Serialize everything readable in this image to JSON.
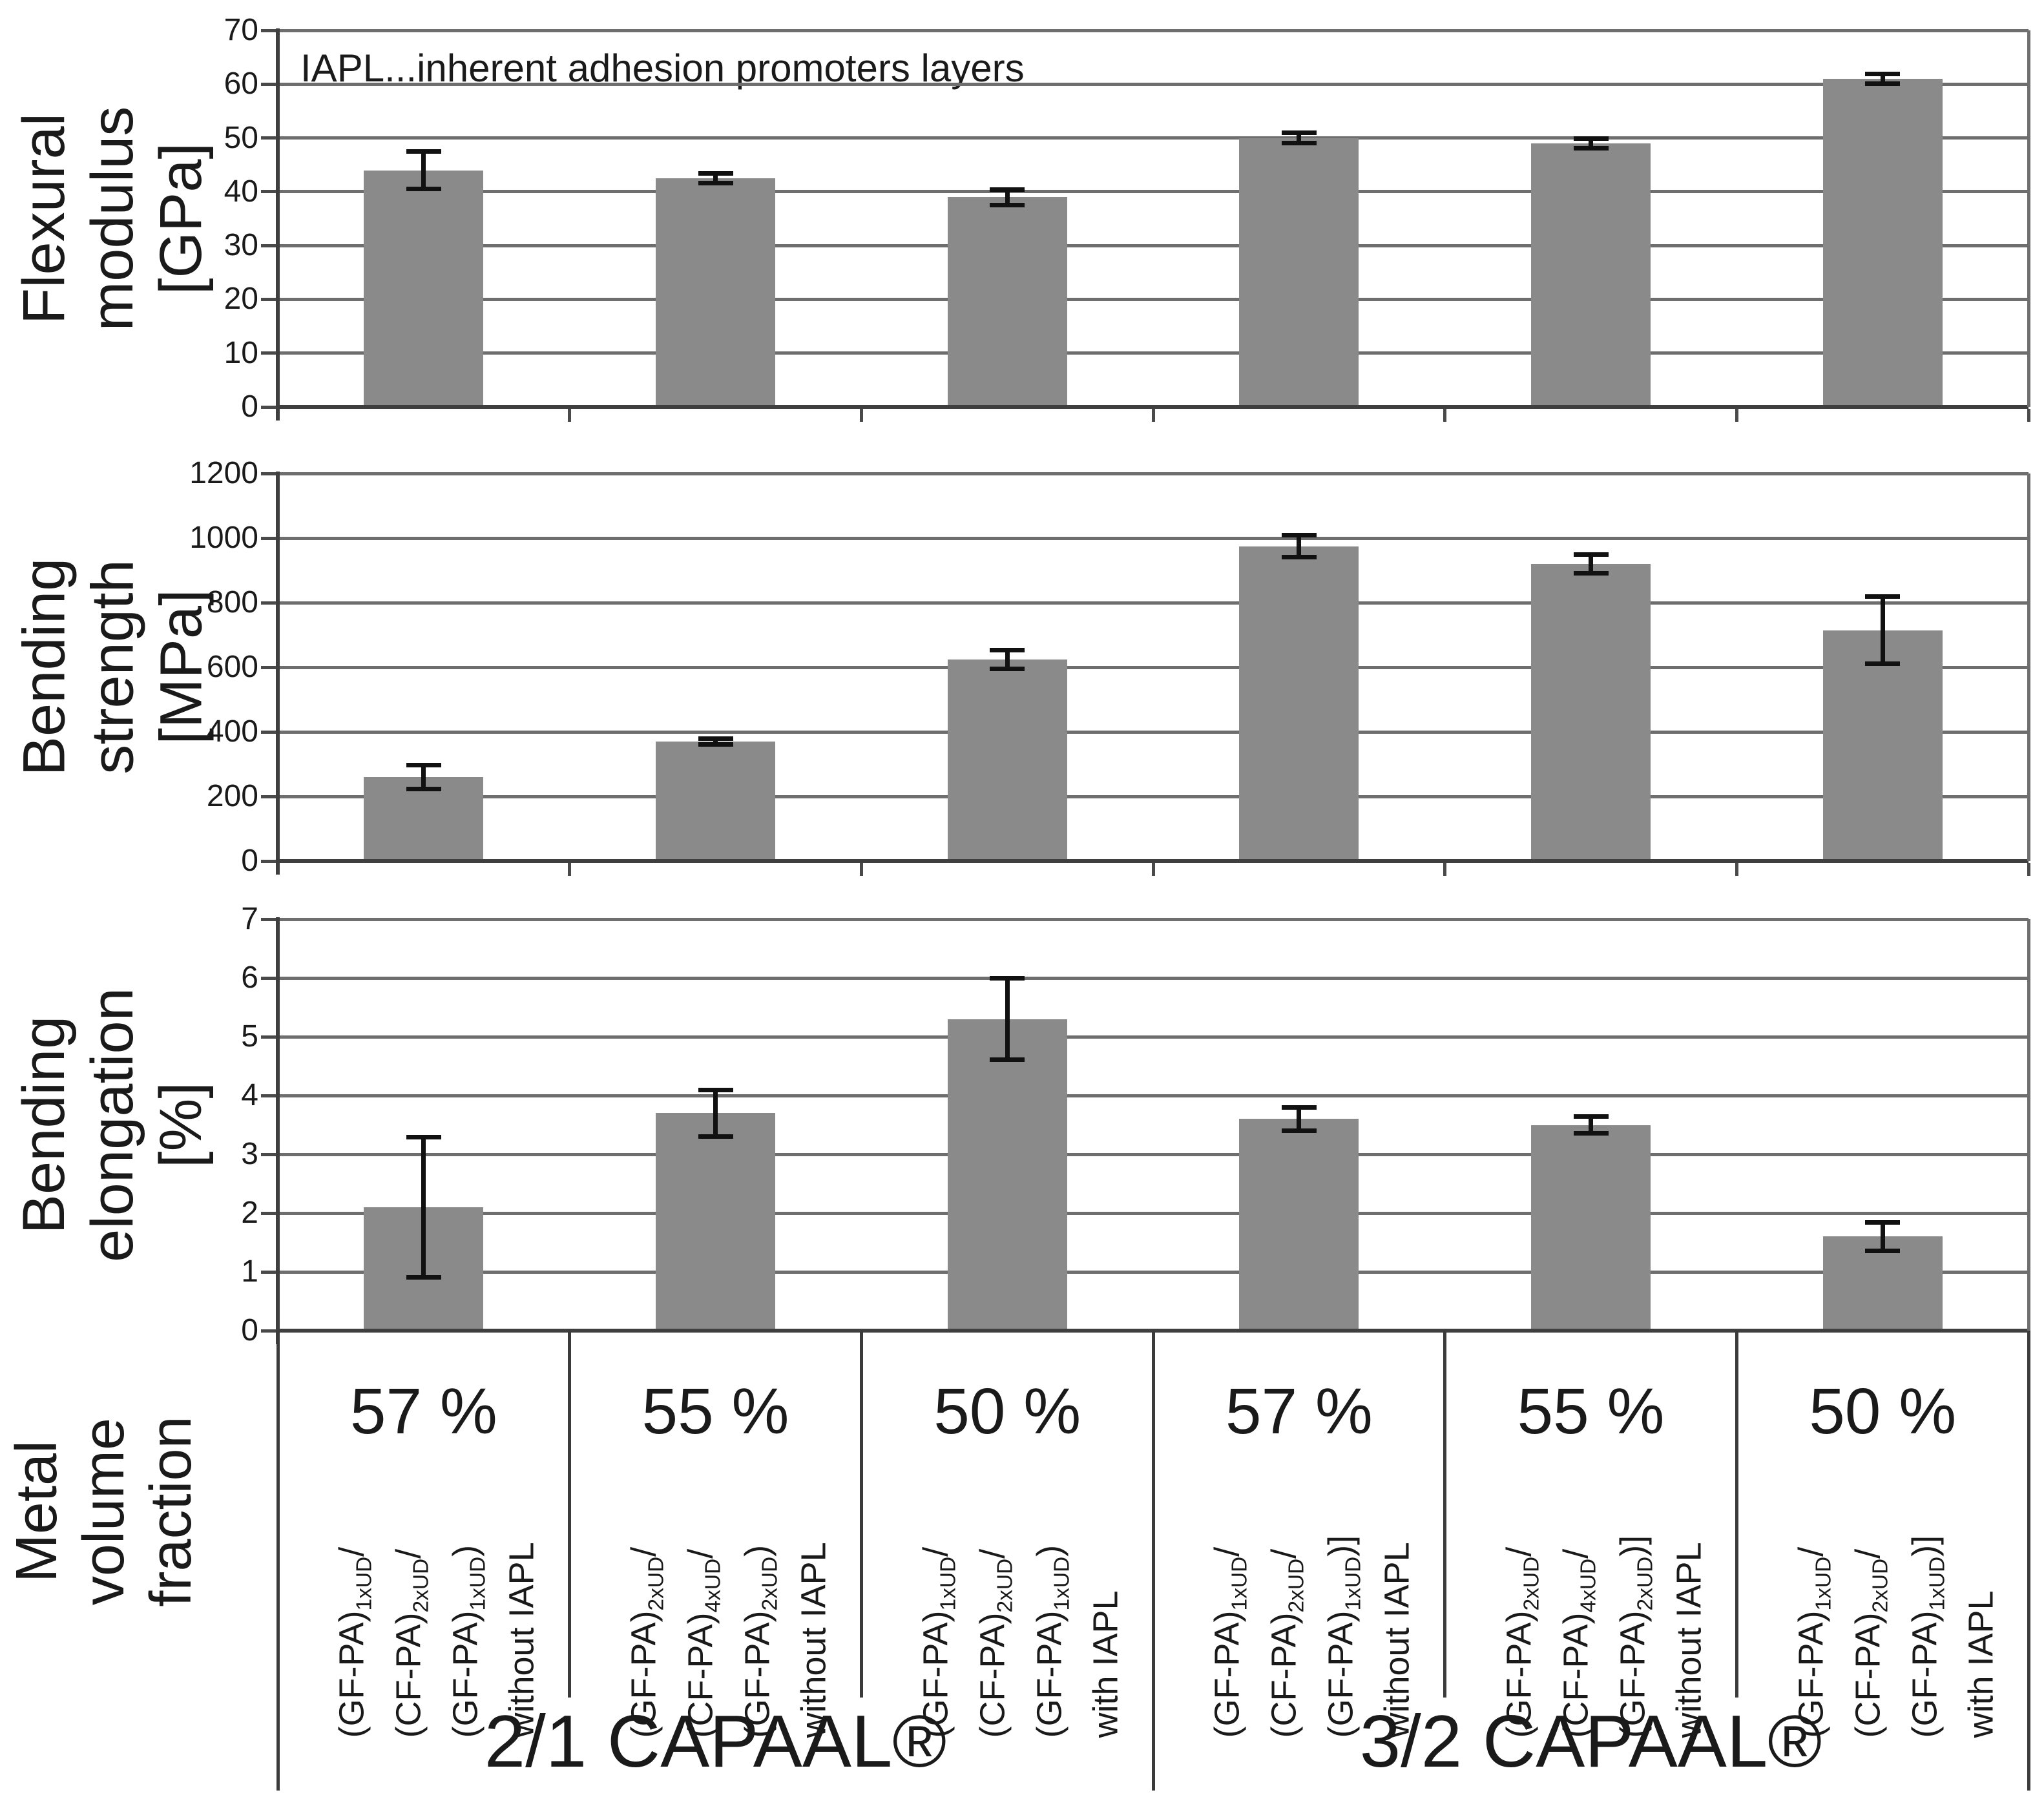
{
  "colors": {
    "bar_fill": "#8a8a8a",
    "gridline": "#6e6e6e",
    "axis": "#3f3f3f",
    "tick": "#4a4a4a",
    "error_bar": "#111111",
    "separator": "#3b3b3b",
    "text": "#1a1a1a",
    "background": "#ffffff"
  },
  "figure": {
    "annotation": "IAPL...inherent adhesion promoters layers",
    "row_label": "Metal\nvolume\nfraction",
    "group_labels": [
      "2/1 CAPAAL®",
      "3/2 CAPAAL®"
    ]
  },
  "chart_data": [
    {
      "type": "bar",
      "title": "",
      "ylabel": "Flexural modulus\n[GPa]",
      "xlabel": "",
      "ylim": [
        0,
        70
      ],
      "yticks": [
        0,
        10,
        20,
        30,
        40,
        50,
        60,
        70
      ],
      "grid": true,
      "legend": null,
      "categories": [
        "57 % 2/1 without IAPL",
        "55 % 2/1 without IAPL",
        "50 % 2/1 with IAPL",
        "57 % 3/2 without IAPL",
        "55 % 3/2 without IAPL",
        "50 % 3/2 with IAPL"
      ],
      "values": [
        44,
        42.5,
        39,
        50,
        49,
        61
      ],
      "errors": [
        3.5,
        1,
        1.5,
        1,
        1,
        1
      ]
    },
    {
      "type": "bar",
      "title": "",
      "ylabel": "Bending strength\n[MPa]",
      "xlabel": "",
      "ylim": [
        0,
        1200
      ],
      "yticks": [
        0,
        200,
        400,
        600,
        800,
        1000,
        1200
      ],
      "grid": true,
      "legend": null,
      "categories": [
        "57 % 2/1 without IAPL",
        "55 % 2/1 without IAPL",
        "50 % 2/1 with IAPL",
        "57 % 3/2 without IAPL",
        "55 % 3/2 without IAPL",
        "50 % 3/2 with IAPL"
      ],
      "values": [
        260,
        370,
        625,
        975,
        920,
        715
      ],
      "errors": [
        38,
        10,
        30,
        35,
        30,
        105
      ]
    },
    {
      "type": "bar",
      "title": "",
      "ylabel": "Bending elongation\n[%]",
      "xlabel": "",
      "ylim": [
        0,
        7
      ],
      "yticks": [
        0,
        1,
        2,
        3,
        4,
        5,
        6,
        7
      ],
      "grid": true,
      "legend": null,
      "categories": [
        "57 % 2/1 without IAPL",
        "55 % 2/1 without IAPL",
        "50 % 2/1 with IAPL",
        "57 % 3/2 without IAPL",
        "55 % 3/2 without IAPL",
        "50 % 3/2 with IAPL"
      ],
      "values": [
        2.1,
        3.7,
        5.3,
        3.6,
        3.5,
        1.6
      ],
      "errors": [
        1.2,
        0.4,
        0.7,
        0.2,
        0.15,
        0.25
      ]
    }
  ],
  "categories": [
    {
      "fraction": "57 %",
      "layup_lines": [
        [
          {
            "t": "(GF-PA)"
          },
          {
            "t": "1xUD",
            "sub": true
          },
          {
            "t": "/"
          }
        ],
        [
          {
            "t": "(CF-PA)"
          },
          {
            "t": "2xUD",
            "sub": true
          },
          {
            "t": "/"
          }
        ],
        [
          {
            "t": "(GF-PA)"
          },
          {
            "t": "1xUD",
            "sub": true
          },
          {
            "t": ")"
          }
        ],
        [
          {
            "t": "without IAPL"
          }
        ]
      ]
    },
    {
      "fraction": "55 %",
      "layup_lines": [
        [
          {
            "t": "(GF-PA)"
          },
          {
            "t": "2xUD",
            "sub": true
          },
          {
            "t": "/"
          }
        ],
        [
          {
            "t": "(CF-PA)"
          },
          {
            "t": "4xUD",
            "sub": true
          },
          {
            "t": "/"
          }
        ],
        [
          {
            "t": "(GF-PA)"
          },
          {
            "t": "2xUD",
            "sub": true
          },
          {
            "t": ")"
          }
        ],
        [
          {
            "t": "without IAPL"
          }
        ]
      ]
    },
    {
      "fraction": "50 %",
      "layup_lines": [
        [
          {
            "t": "(GF-PA)"
          },
          {
            "t": "1xUD",
            "sub": true
          },
          {
            "t": "/"
          }
        ],
        [
          {
            "t": "(CF-PA)"
          },
          {
            "t": "2xUD",
            "sub": true
          },
          {
            "t": "/"
          }
        ],
        [
          {
            "t": "(GF-PA)"
          },
          {
            "t": "1xUD",
            "sub": true
          },
          {
            "t": ")"
          }
        ],
        [
          {
            "t": "with IAPL"
          }
        ]
      ]
    },
    {
      "fraction": "57 %",
      "layup_lines": [
        [
          {
            "t": "(GF-PA)"
          },
          {
            "t": "1xUD",
            "sub": true
          },
          {
            "t": "/"
          }
        ],
        [
          {
            "t": "(CF-PA)"
          },
          {
            "t": "2xUD",
            "sub": true
          },
          {
            "t": "/"
          }
        ],
        [
          {
            "t": "(GF-PA)"
          },
          {
            "t": "1xUD",
            "sub": true
          },
          {
            "t": ")]"
          }
        ],
        [
          {
            "t": "without IAPL"
          }
        ]
      ]
    },
    {
      "fraction": "55 %",
      "layup_lines": [
        [
          {
            "t": "(GF-PA)"
          },
          {
            "t": "2xUD",
            "sub": true
          },
          {
            "t": "/"
          }
        ],
        [
          {
            "t": "(CF-PA)"
          },
          {
            "t": "4xUD",
            "sub": true
          },
          {
            "t": "/"
          }
        ],
        [
          {
            "t": "(GF-PA)"
          },
          {
            "t": "2xUD",
            "sub": true
          },
          {
            "t": ")]"
          }
        ],
        [
          {
            "t": "without IAPL"
          }
        ]
      ]
    },
    {
      "fraction": "50 %",
      "layup_lines": [
        [
          {
            "t": "(GF-PA)"
          },
          {
            "t": "1xUD",
            "sub": true
          },
          {
            "t": "/"
          }
        ],
        [
          {
            "t": "(CF-PA)"
          },
          {
            "t": "2xUD",
            "sub": true
          },
          {
            "t": "/"
          }
        ],
        [
          {
            "t": "(GF-PA)"
          },
          {
            "t": "1xUD",
            "sub": true
          },
          {
            "t": ")]"
          }
        ],
        [
          {
            "t": "with IAPL"
          }
        ]
      ]
    }
  ]
}
